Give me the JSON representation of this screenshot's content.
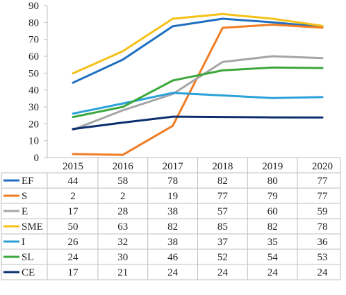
{
  "chart_data": {
    "type": "line",
    "title": "",
    "xlabel": "",
    "ylabel": "",
    "categories": [
      "2015",
      "2016",
      "2017",
      "2018",
      "2019",
      "2020"
    ],
    "ylim": [
      0,
      90
    ],
    "yticks": [
      0,
      10,
      20,
      30,
      40,
      50,
      60,
      70,
      80,
      90
    ],
    "grid": false,
    "legend": "data-table-below",
    "series": [
      {
        "name": "EF",
        "color": "#1f6fc1",
        "values": [
          44,
          58,
          78,
          82,
          80,
          77
        ],
        "plot": [
          44.3,
          58,
          77.7,
          82.2,
          80.1,
          77.4
        ]
      },
      {
        "name": "S",
        "color": "#f07c23",
        "values": [
          2,
          2,
          19,
          77,
          79,
          77
        ],
        "plot": [
          2.1,
          1.6,
          18.8,
          76.8,
          78.7,
          76.9
        ]
      },
      {
        "name": "E",
        "color": "#a5a5a5",
        "values": [
          17,
          28,
          38,
          57,
          60,
          59
        ],
        "plot": [
          16.5,
          28,
          37.6,
          56.6,
          60,
          58.9
        ]
      },
      {
        "name": "SME",
        "color": "#f5c017",
        "values": [
          50,
          63,
          82,
          85,
          82,
          78
        ],
        "plot": [
          49.8,
          63,
          82.2,
          85,
          82.2,
          78
        ]
      },
      {
        "name": "I",
        "color": "#2aa1d9",
        "values": [
          26,
          32,
          38,
          37,
          35,
          36
        ],
        "plot": [
          26,
          32,
          38.3,
          36.8,
          35.2,
          35.8
        ]
      },
      {
        "name": "SL",
        "color": "#3ca83c",
        "values": [
          24,
          30,
          46,
          52,
          54,
          53
        ],
        "plot": [
          24,
          30,
          45.6,
          51.6,
          53.3,
          53
        ]
      },
      {
        "name": "CE",
        "color": "#0d2f6e",
        "values": [
          17,
          21,
          24,
          24,
          24,
          24
        ],
        "plot": [
          16.9,
          20.7,
          24.2,
          24,
          23.8,
          23.7
        ]
      }
    ]
  }
}
